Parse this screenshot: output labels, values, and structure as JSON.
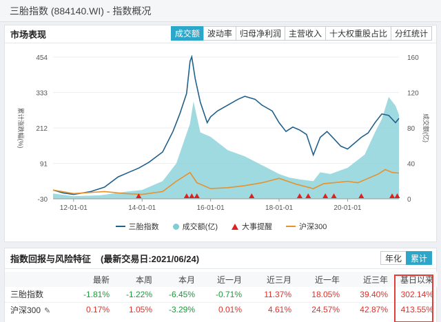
{
  "window": {
    "title": "三胎指数 (884140.WI) - 指数概况"
  },
  "market": {
    "title": "市场表现",
    "tabs": [
      "成交额",
      "波动率",
      "归母净利润",
      "主营收入",
      "十大权重股占比",
      "分红统计"
    ],
    "active_tab": 0
  },
  "chart_data": {
    "type": "line",
    "ylabel_left": "累计涨跌幅(%)",
    "ylabel_right": "成交额(亿)",
    "y_left_ticks": [
      "454",
      "333",
      "212",
      "91",
      "-30"
    ],
    "y_right_ticks": [
      "160",
      "120",
      "80",
      "40",
      "0"
    ],
    "x_ticks": [
      "12-01-01",
      "14-01-01",
      "16-01-01",
      "18-01-01",
      "20-01-01"
    ],
    "ylim_left": [
      -30,
      454
    ],
    "ylim_right": [
      0,
      160
    ],
    "xlim": [
      2011.4,
      2021.5
    ],
    "series": [
      {
        "name": "三胎指数",
        "color": "#1f5f8b",
        "kind": "line",
        "x": [
          2011.4,
          2011.7,
          2012.0,
          2012.5,
          2012.9,
          2013.3,
          2013.6,
          2013.9,
          2014.2,
          2014.6,
          2014.9,
          2015.1,
          2015.3,
          2015.4,
          2015.45,
          2015.55,
          2015.7,
          2015.9,
          2016.0,
          2016.2,
          2016.5,
          2016.8,
          2017.0,
          2017.3,
          2017.5,
          2017.8,
          2018.0,
          2018.2,
          2018.4,
          2018.6,
          2018.8,
          2019.0,
          2019.2,
          2019.4,
          2019.6,
          2019.8,
          2020.0,
          2020.2,
          2020.4,
          2020.6,
          2020.8,
          2021.0,
          2021.2,
          2021.4,
          2021.5
        ],
        "y": [
          0,
          -10,
          -15,
          -5,
          10,
          45,
          60,
          75,
          95,
          130,
          200,
          260,
          330,
          440,
          455,
          380,
          300,
          230,
          250,
          270,
          290,
          310,
          320,
          310,
          290,
          270,
          230,
          200,
          215,
          205,
          190,
          120,
          180,
          200,
          175,
          150,
          140,
          160,
          180,
          195,
          230,
          260,
          255,
          230,
          245
        ]
      },
      {
        "name": "成交额(亿)",
        "color": "#7fcdd6",
        "kind": "area",
        "x": [
          2011.4,
          2012.0,
          2012.8,
          2013.5,
          2014.0,
          2014.6,
          2015.0,
          2015.4,
          2015.5,
          2015.7,
          2016.0,
          2016.5,
          2017.0,
          2017.5,
          2018.0,
          2018.3,
          2018.6,
          2019.0,
          2019.2,
          2019.5,
          2020.0,
          2020.5,
          2020.8,
          2021.0,
          2021.2,
          2021.4,
          2021.5
        ],
        "y": [
          6,
          3,
          4,
          8,
          10,
          20,
          40,
          85,
          110,
          75,
          70,
          55,
          48,
          38,
          28,
          24,
          22,
          20,
          30,
          28,
          35,
          50,
          75,
          90,
          115,
          105,
          95
        ]
      },
      {
        "name": "沪深300",
        "color": "#e8902a",
        "kind": "line",
        "x": [
          2011.4,
          2012.0,
          2012.9,
          2013.5,
          2014.0,
          2014.6,
          2015.0,
          2015.4,
          2015.6,
          2016.0,
          2016.5,
          2017.0,
          2017.5,
          2018.0,
          2018.5,
          2019.0,
          2019.3,
          2019.6,
          2020.0,
          2020.3,
          2020.6,
          2020.9,
          2021.1,
          2021.3,
          2021.5
        ],
        "y": [
          0,
          -12,
          -5,
          -12,
          -15,
          -5,
          30,
          60,
          25,
          5,
          8,
          15,
          25,
          40,
          20,
          5,
          22,
          25,
          30,
          25,
          40,
          55,
          70,
          60,
          58
        ]
      }
    ],
    "events": {
      "name": "大事提醒",
      "color": "#e02020",
      "x": [
        2013.9,
        2015.3,
        2015.45,
        2015.6,
        2017.2,
        2018.6,
        2018.85,
        2019.35,
        2019.6,
        2020.4,
        2021.3,
        2021.45
      ]
    }
  },
  "legend": [
    "三胎指数",
    "成交额(亿)",
    "大事提醒",
    "沪深300"
  ],
  "returns": {
    "title": "指数回报与风险特征",
    "date_label": "(最新交易日:2021/06/24)",
    "toggle": [
      "年化",
      "累计"
    ],
    "columns": [
      "",
      "最新",
      "本周",
      "本月",
      "近一月",
      "近三月",
      "近一年",
      "近三年",
      "基日以来"
    ],
    "rows": [
      {
        "name": "三胎指数",
        "values": [
          "-1.81%",
          "-1.22%",
          "-6.45%",
          "-0.71%",
          "11.37%",
          "18.05%",
          "39.40%",
          "302.14%"
        ]
      },
      {
        "name": "沪深300",
        "values": [
          "0.17%",
          "1.05%",
          "-3.29%",
          "0.01%",
          "4.61%",
          "24.57%",
          "42.87%",
          "413.55%"
        ]
      }
    ]
  }
}
